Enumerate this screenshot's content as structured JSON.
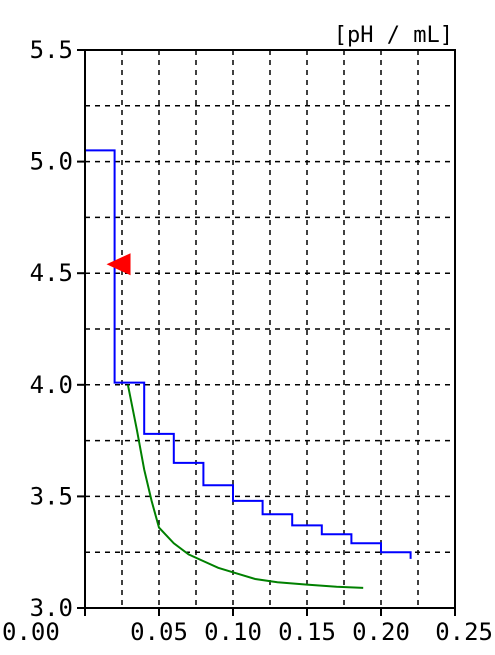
{
  "chart_data": {
    "type": "line",
    "unit_label": "[pH / mL]",
    "xlim": [
      0.0,
      0.25
    ],
    "ylim": [
      3.0,
      5.5
    ],
    "x_ticks": [
      0.0,
      0.05,
      0.1,
      0.15,
      0.2,
      0.25
    ],
    "x_tick_labels": [
      "0.00",
      "0.05",
      "0.10",
      "0.15",
      "0.20",
      "0.25"
    ],
    "y_ticks": [
      3.0,
      3.5,
      4.0,
      4.5,
      5.0,
      5.5
    ],
    "y_tick_labels": [
      "3.0",
      "3.5",
      "4.0",
      "4.5",
      "5.0",
      "5.5"
    ],
    "grid": true,
    "series": [
      {
        "color": "#0000ff",
        "style": "step",
        "x": [
          0.0,
          0.02,
          0.02,
          0.04,
          0.04,
          0.06,
          0.06,
          0.08,
          0.08,
          0.1,
          0.1,
          0.12,
          0.12,
          0.14,
          0.14,
          0.16,
          0.16,
          0.18,
          0.18,
          0.2,
          0.2,
          0.22,
          0.22
        ],
        "y": [
          5.05,
          5.05,
          4.01,
          4.01,
          3.78,
          3.78,
          3.65,
          3.65,
          3.55,
          3.55,
          3.48,
          3.48,
          3.42,
          3.42,
          3.37,
          3.37,
          3.33,
          3.33,
          3.29,
          3.29,
          3.25,
          3.25,
          3.22
        ]
      },
      {
        "color": "#008000",
        "style": "line",
        "x": [
          0.029,
          0.035,
          0.04,
          0.045,
          0.05,
          0.06,
          0.07,
          0.08,
          0.09,
          0.1,
          0.115,
          0.13,
          0.15,
          0.17,
          0.188
        ],
        "y": [
          4.0,
          3.8,
          3.62,
          3.48,
          3.36,
          3.29,
          3.24,
          3.21,
          3.18,
          3.16,
          3.13,
          3.115,
          3.105,
          3.095,
          3.09
        ]
      }
    ],
    "marker": {
      "shape": "triangle-left",
      "color": "#ff0000",
      "x": 0.024,
      "y": 4.54
    }
  }
}
